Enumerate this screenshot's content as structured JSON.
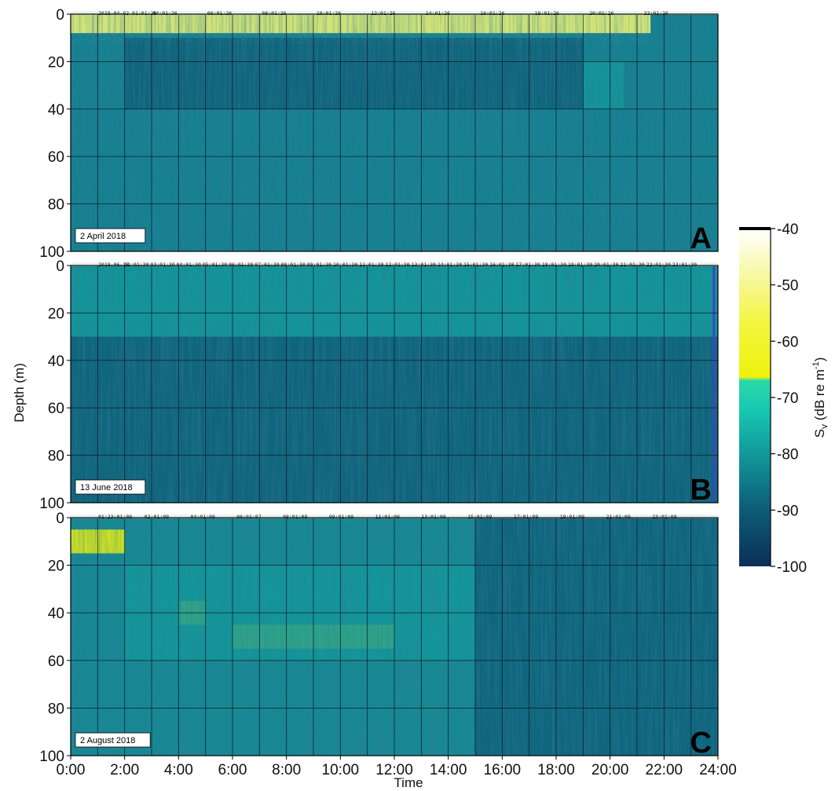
{
  "chart_data": [
    {
      "type": "heatmap",
      "panel": "A",
      "date_label": "2 April 2018",
      "x_ticks": [
        "0:00",
        "2:00",
        "4:00",
        "6:00",
        "8:00",
        "10:00",
        "12:00",
        "14:00",
        "16:00",
        "18:00",
        "20:00",
        "22:00",
        "24:00"
      ],
      "y_ticks": [
        "0",
        "20",
        "40",
        "60",
        "80",
        "100"
      ],
      "xlim": [
        0,
        24
      ],
      "ylim": [
        0,
        100
      ],
      "grid": true,
      "sample_timestamps": [
        "2018-04-02 01:01:26",
        "04:01:26",
        "06:01:26",
        "08:01:26",
        "10:01:26",
        "12:01:26",
        "14:01:26",
        "16:01:26",
        "18:01:26",
        "20:01:26",
        "22:01:26"
      ],
      "layers": [
        {
          "depth": [
            0,
            8
          ],
          "hours": [
            0,
            21.5
          ],
          "sv_db": -42,
          "note": "white noise speckle near surface"
        },
        {
          "depth": [
            10,
            40
          ],
          "hours": [
            2,
            19
          ],
          "sv_db": -82
        },
        {
          "depth": [
            20,
            40
          ],
          "hours": [
            19,
            20.5
          ],
          "sv_db": -73
        }
      ]
    },
    {
      "type": "heatmap",
      "panel": "B",
      "date_label": "13 June 2018",
      "x_ticks": [
        "0:00",
        "2:00",
        "4:00",
        "6:00",
        "8:00",
        "10:00",
        "12:00",
        "14:00",
        "16:00",
        "18:00",
        "20:00",
        "22:00",
        "24:00"
      ],
      "y_ticks": [
        "0",
        "20",
        "40",
        "60",
        "80",
        "100"
      ],
      "xlim": [
        0,
        24
      ],
      "ylim": [
        0,
        100
      ],
      "grid": true,
      "sample_timestamps": [
        "2018-06-13",
        "01:01:30",
        "03:01:30",
        "04:01:30",
        "05:01:30",
        "06:01:30",
        "07:01:30",
        "08:01:30",
        "09:01:30",
        "10:01:30",
        "11:01:30",
        "12:01:30",
        "13:01:30",
        "14:01:30",
        "15:01:30",
        "16:01:30",
        "17:01:30",
        "18:01:30",
        "19:01:30",
        "20:01:30",
        "21:01:30",
        "22:01:30",
        "23:01:30"
      ],
      "layers": [
        {
          "depth": [
            0,
            30
          ],
          "hours": [
            0,
            24
          ],
          "sv_db": -74
        },
        {
          "depth": [
            30,
            40
          ],
          "hours": [
            0,
            24
          ],
          "sv_db": -88
        },
        {
          "depth": [
            40,
            100
          ],
          "hours": [
            0,
            24
          ],
          "sv_db": -82
        }
      ]
    },
    {
      "type": "heatmap",
      "panel": "C",
      "date_label": "2 August 2018",
      "x_ticks": [
        "0:00",
        "2:00",
        "4:00",
        "6:00",
        "8:00",
        "10:00",
        "12:00",
        "14:00",
        "16:00",
        "18:00",
        "20:00",
        "22:00",
        "24:00"
      ],
      "y_ticks": [
        "0",
        "20",
        "40",
        "60",
        "80",
        "100"
      ],
      "xlim": [
        0,
        24
      ],
      "ylim": [
        0,
        100
      ],
      "grid": true,
      "sample_timestamps": [
        "01:23:01:09",
        "02:01:09",
        "04:01:09",
        "06:01:07",
        "08:01:09",
        "09:01:09",
        "11:01:09",
        "13:01:09",
        "15:01:09",
        "17:01:09",
        "19:01:09",
        "21:01:09",
        "23:01:09"
      ],
      "layers": [
        {
          "depth": [
            5,
            15
          ],
          "hours": [
            0,
            2
          ],
          "sv_db": -62
        },
        {
          "depth": [
            35,
            45
          ],
          "hours": [
            4,
            5
          ],
          "sv_db": -63
        },
        {
          "depth": [
            45,
            55
          ],
          "hours": [
            6,
            12
          ],
          "sv_db": -63
        },
        {
          "depth": [
            20,
            60
          ],
          "hours": [
            2,
            15
          ],
          "sv_db": -76
        },
        {
          "depth": [
            0,
            100
          ],
          "hours": [
            15,
            24
          ],
          "sv_db": -83
        }
      ]
    }
  ],
  "y_axis_label": "Depth (m)",
  "x_axis_label": "Time",
  "colorbar": {
    "label": "S",
    "label_sub": "v",
    "label_units": " (dB re m",
    "label_sup": "-1",
    "label_close": ")",
    "ticks": [
      "-40",
      "-50",
      "-60",
      "-70",
      "-80",
      "-90",
      "-100"
    ],
    "range": [
      -100,
      -40
    ],
    "colors": [
      "#0b2f57",
      "#0d5d78",
      "#11989a",
      "#19c9b3",
      "#2bd9a8",
      "#f2f20a",
      "#f8f870",
      "#ffffff"
    ]
  }
}
